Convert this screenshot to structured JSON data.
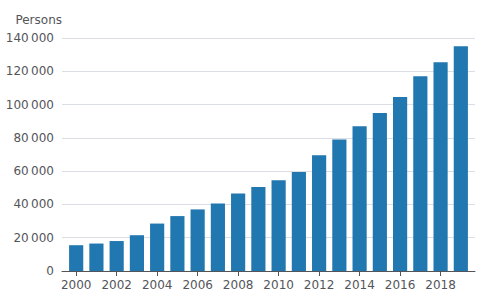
{
  "chart_data": {
    "type": "bar",
    "x": [
      2000,
      2001,
      2002,
      2003,
      2004,
      2005,
      2006,
      2007,
      2008,
      2009,
      2010,
      2011,
      2012,
      2013,
      2014,
      2015,
      2016,
      2017,
      2018,
      2019
    ],
    "values": [
      15500,
      16500,
      18000,
      21500,
      28500,
      33000,
      37000,
      40500,
      46500,
      50500,
      54500,
      59500,
      69500,
      79000,
      87000,
      95000,
      104500,
      117000,
      125500,
      135000
    ],
    "color": "#2177b0",
    "ylabel": "Persons",
    "xlim": [
      1999.3,
      2019.7
    ],
    "xticks": [
      2000,
      2002,
      2004,
      2006,
      2008,
      2010,
      2012,
      2014,
      2016,
      2018
    ],
    "ylim": [
      0,
      140000
    ],
    "yticks": [
      0,
      {
        "value": 20000,
        "label": "20 000"
      },
      {
        "value": 40000,
        "label": "40 000"
      },
      {
        "value": 60000,
        "label": "60 000"
      },
      {
        "value": 80000,
        "label": "80 000"
      },
      {
        "value": 100000,
        "label": "100 000"
      },
      {
        "value": 120000,
        "label": "120 000"
      },
      {
        "value": 140000,
        "label": "140 000"
      }
    ],
    "grid": true
  }
}
